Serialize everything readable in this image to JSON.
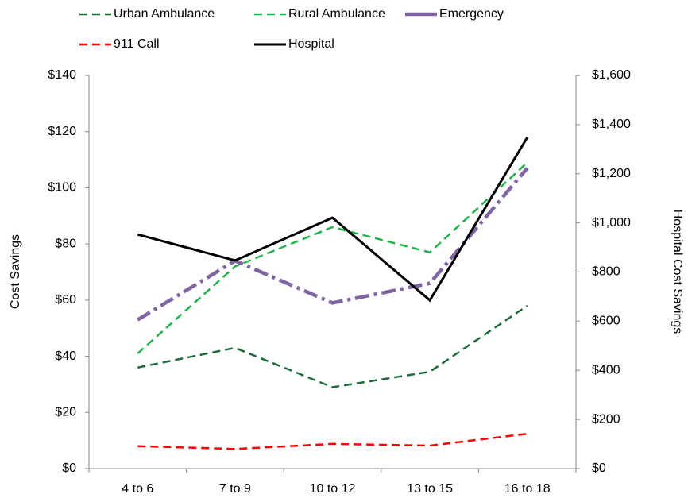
{
  "chart_data": {
    "type": "line",
    "categories": [
      "4 to 6",
      "7 to 9",
      "10 to 12",
      "13 to 15",
      "16 to 18"
    ],
    "y_label": "Cost Savings",
    "y2_label": "Hospital Cost Savings",
    "ylim": [
      0,
      140
    ],
    "yticks": [
      {
        "value": 0,
        "label": "$0"
      },
      {
        "value": 20,
        "label": "$20"
      },
      {
        "value": 40,
        "label": "$40"
      },
      {
        "value": 60,
        "label": "$60"
      },
      {
        "value": 80,
        "label": "$80"
      },
      {
        "value": 100,
        "label": "$100"
      },
      {
        "value": 120,
        "label": "$120"
      },
      {
        "value": 140,
        "label": "$140"
      }
    ],
    "y2lim": [
      0,
      1600
    ],
    "y2ticks": [
      {
        "value": 0,
        "label": "$0"
      },
      {
        "value": 200,
        "label": "$200"
      },
      {
        "value": 400,
        "label": "$400"
      },
      {
        "value": 600,
        "label": "$600"
      },
      {
        "value": 800,
        "label": "$800"
      },
      {
        "value": 1000,
        "label": "$1,000"
      },
      {
        "value": 1200,
        "label": "$1,200"
      },
      {
        "value": 1400,
        "label": "$1,400"
      },
      {
        "value": 1600,
        "label": "$1,600"
      }
    ],
    "legend_position": "top",
    "series": [
      {
        "name": "Urban Ambulance",
        "color": "#1e6b3a",
        "style": "dashed",
        "values": [
          36,
          43,
          29,
          34.5,
          58
        ]
      },
      {
        "name": "Rural Ambulance",
        "color": "#22b14c",
        "style": "dashed",
        "values": [
          41,
          72,
          86,
          77,
          109
        ]
      },
      {
        "name": "Emergency",
        "color": "#8064a2",
        "style": "dash-dot",
        "values": [
          53,
          74,
          59,
          66,
          107
        ]
      },
      {
        "name": "911 Call",
        "color": "#ff0000",
        "style": "dashed",
        "values": [
          8,
          7,
          8.8,
          8.2,
          12.4
        ]
      },
      {
        "name": "Hospital",
        "color": "#000000",
        "style": "solid",
        "axis": "y2",
        "values": [
          953,
          847,
          1021,
          685,
          1348
        ]
      }
    ]
  }
}
